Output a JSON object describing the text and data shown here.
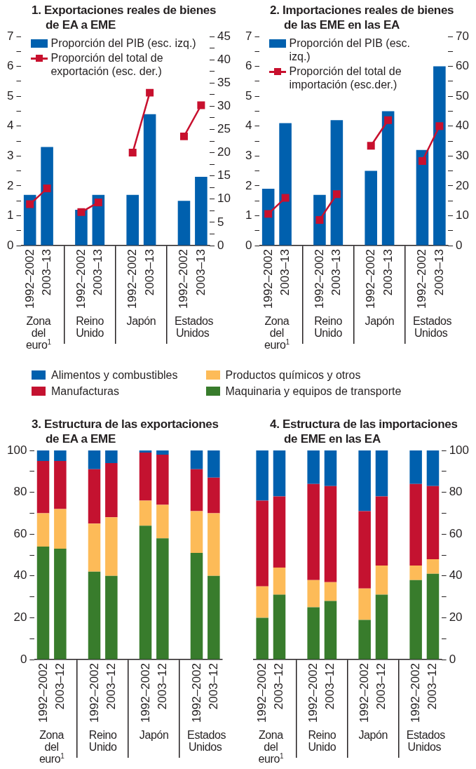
{
  "chart_data": [
    {
      "type": "bar",
      "title": "1. Exportaciones reales de bienes de EA a EME",
      "categories": [
        "1992–2002",
        "2003–13",
        null,
        "1992–2002",
        "2003–13",
        null,
        "1992–2002",
        "2003–13",
        null,
        "1992–2002",
        "2003–13"
      ],
      "series": [
        {
          "name": "Proporción del PIB (esc. izq.)",
          "color": "#0060ae",
          "values": [
            1.7,
            3.3,
            null,
            1.2,
            1.7,
            null,
            1.7,
            4.4,
            null,
            1.5,
            2.3
          ]
        },
        {
          "name": "Proporción del total de exportación (esc. der.)",
          "type": "line",
          "axis": "y2",
          "color": "#c8102e",
          "values": [
            8.9,
            12.3,
            null,
            7.2,
            9.3,
            null,
            20,
            32.9,
            null,
            23.5,
            30.2
          ]
        }
      ],
      "ylim": [
        0,
        7
      ],
      "yticks": [
        0,
        {
          "value": 0.5,
          "label": null
        },
        1,
        {
          "value": 1.5,
          "label": null
        },
        2,
        {
          "value": 2.5,
          "label": null
        },
        3,
        {
          "value": 3.5,
          "label": null
        },
        4,
        {
          "value": 4.5,
          "label": null
        },
        5,
        {
          "value": 5.5,
          "label": null
        },
        6,
        {
          "value": 6.5,
          "label": null
        },
        7
      ],
      "y2lim": [
        0,
        45
      ],
      "y2ticks": [
        0,
        {
          "value": 2.5,
          "label": null
        },
        5,
        {
          "value": 7.5,
          "label": null
        },
        10,
        {
          "value": 12.5,
          "label": null
        },
        15,
        {
          "value": 17.5,
          "label": null
        },
        20,
        {
          "value": 22.5,
          "label": null
        },
        25,
        {
          "value": 27.5,
          "label": null
        },
        30,
        {
          "value": 32.5,
          "label": null
        },
        35,
        {
          "value": 37.5,
          "label": null
        },
        40,
        {
          "value": 42.5,
          "label": null
        },
        45
      ],
      "legend": "top left",
      "marker": "square",
      "annotations": [
        "Zona del euro$^{1}$",
        "Reino Unido",
        "Japón",
        "Estados Unidos"
      ]
    },
    {
      "type": "bar",
      "title": "2. Importaciones reales de bienes de las EME en las EA",
      "categories": [
        "1992–2002",
        "2003–13",
        null,
        "1992–2002",
        "2003–13",
        null,
        "1992–2002",
        "2003–13",
        null,
        "1992–2002",
        "2003–13"
      ],
      "series": [
        {
          "name": "Proporción del PIB (esc. izq.)",
          "color": "#0060ae",
          "values": [
            1.9,
            4.1,
            null,
            1.7,
            4.2,
            null,
            2.5,
            4.5,
            null,
            3.2,
            6.0
          ]
        },
        {
          "name": "Proporción del total de importación (esc.der.)",
          "type": "line",
          "axis": "y2",
          "color": "#c8102e",
          "values": [
            10.6,
            16,
            null,
            8.6,
            17.2,
            null,
            33.4,
            42,
            null,
            28.3,
            40
          ]
        }
      ],
      "ylim": [
        0,
        7
      ],
      "yticks": [
        0,
        {
          "value": 0.5,
          "label": null
        },
        1,
        {
          "value": 1.5,
          "label": null
        },
        2,
        {
          "value": 2.5,
          "label": null
        },
        3,
        {
          "value": 3.5,
          "label": null
        },
        4,
        {
          "value": 4.5,
          "label": null
        },
        5,
        {
          "value": 5.5,
          "label": null
        },
        6,
        {
          "value": 6.5,
          "label": null
        },
        7
      ],
      "y2lim": [
        0,
        70
      ],
      "y2ticks": [
        0,
        {
          "value": 5,
          "label": null
        },
        10,
        {
          "value": 15,
          "label": null
        },
        20,
        {
          "value": 25,
          "label": null
        },
        30,
        {
          "value": 35,
          "label": null
        },
        40,
        {
          "value": 45,
          "label": null
        },
        50,
        {
          "value": 55,
          "label": null
        },
        60,
        {
          "value": 65,
          "label": null
        },
        70
      ],
      "legend": "top left",
      "marker": "square",
      "annotations": [
        "Zona del euro$^{1}$",
        "Reino Unido",
        "Japón",
        "Estados Unidos"
      ]
    },
    {
      "type": "bar",
      "stacked": true,
      "title": "3. Estructura de las exportaciones de EA a EME",
      "categories": [
        "1992–2002",
        "2003–12",
        null,
        "1992–2002",
        "2003–12",
        null,
        "1992–2002",
        "2003–12",
        null,
        "1992–2002",
        "2003–12"
      ],
      "series": [
        {
          "name": "Maquinaria y equipos de transporte",
          "color": "#387c2c",
          "values": [
            54,
            53,
            null,
            42,
            40,
            null,
            64,
            58,
            null,
            51,
            40
          ]
        },
        {
          "name": "Productos químicos y otros",
          "color": "#fdbb58",
          "values": [
            16,
            19,
            null,
            23,
            28,
            null,
            12,
            16,
            null,
            20,
            30
          ]
        },
        {
          "name": "Manufacturas",
          "color": "#c41230",
          "values": [
            25,
            23,
            null,
            26,
            26,
            null,
            23,
            24,
            null,
            20,
            17
          ]
        },
        {
          "name": "Alimentos y combustibles",
          "color": "#0060ae",
          "values": [
            5,
            5,
            null,
            9,
            6,
            null,
            1,
            2,
            null,
            9,
            13
          ]
        }
      ],
      "ylim": [
        0,
        100
      ],
      "yticks": [
        0,
        {
          "value": 10,
          "label": null
        },
        20,
        {
          "value": 30,
          "label": null
        },
        40,
        {
          "value": 50,
          "label": null
        },
        60,
        {
          "value": 70,
          "label": null
        },
        80,
        {
          "value": 90,
          "label": null
        },
        100
      ],
      "legend": "top",
      "annotations": [
        "Zona del euro$^{1}$",
        "Reino Unido",
        "Japón",
        "Estados Unidos"
      ]
    },
    {
      "type": "bar",
      "stacked": true,
      "title": "4. Estructura de las importaciones de EME en las EA",
      "categories": [
        "1992–2002",
        "2003–12",
        null,
        "1992–2002",
        "2003–12",
        null,
        "1992–2002",
        "2003–12",
        null,
        "1992–2002",
        "2003–12"
      ],
      "series": [
        {
          "axis": "y2",
          "color": "#387c2c",
          "values": [
            20,
            31,
            null,
            25,
            28,
            null,
            19,
            31,
            null,
            38,
            41
          ]
        },
        {
          "axis": "y2",
          "color": "#fdbb58",
          "values": [
            15,
            13,
            null,
            13,
            9,
            null,
            15,
            14,
            null,
            7,
            7
          ]
        },
        {
          "axis": "y2",
          "color": "#c41230",
          "values": [
            41,
            34,
            null,
            46,
            46,
            null,
            37,
            33,
            null,
            39,
            35
          ]
        },
        {
          "axis": "y2",
          "color": "#0060ae",
          "values": [
            24,
            22,
            null,
            16,
            17,
            null,
            29,
            22,
            null,
            16,
            17
          ]
        }
      ],
      "y2lim": [
        0,
        100
      ],
      "y2ticks": [
        0,
        {
          "value": 10,
          "label": null
        },
        20,
        {
          "value": 30,
          "label": null
        },
        40,
        {
          "value": 50,
          "label": null
        },
        60,
        {
          "value": 70,
          "label": null
        },
        80,
        {
          "value": 90,
          "label": null
        },
        100
      ],
      "annotations": [
        "Zona del euro$^{1}$",
        "Reino Unido",
        "Japón",
        "Estados Unidos"
      ]
    }
  ]
}
